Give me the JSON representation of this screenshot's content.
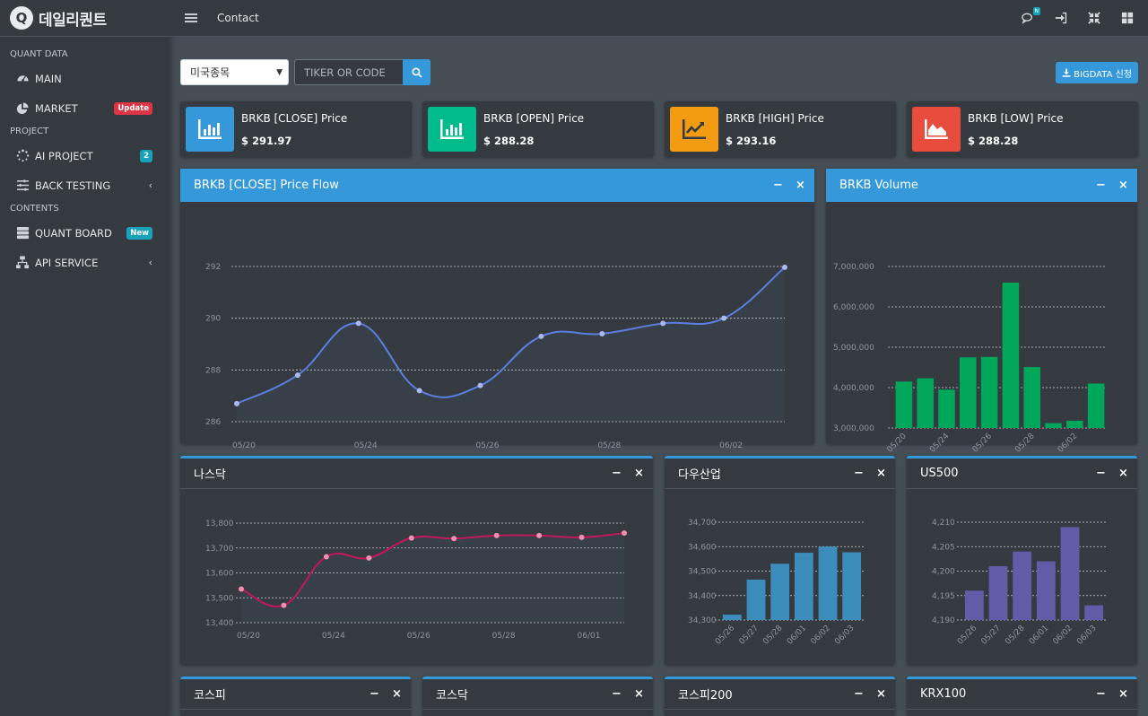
{
  "brand": {
    "logo_letter": "Q",
    "name": "데일리퀀트"
  },
  "sidebar": {
    "sections": [
      {
        "header": "QUANT DATA",
        "items": [
          {
            "label": "MAIN",
            "icon": "dashboard-gauge-icon",
            "badge": "",
            "chevron": ""
          },
          {
            "label": "MARKET",
            "icon": "pie-chart-icon",
            "badge": "Update",
            "badge_color": "#dc3545",
            "chevron": ""
          }
        ]
      },
      {
        "header": "PROJECT",
        "items": [
          {
            "label": "AI PROJECT",
            "icon": "spinner-icon",
            "badge": "2",
            "badge_color": "#17a2b8",
            "chevron": ""
          },
          {
            "label": "BACK TESTING",
            "icon": "sliders-icon",
            "badge": "",
            "chevron": "‹"
          }
        ]
      },
      {
        "header": "CONTENTS",
        "items": [
          {
            "label": "QUANT BOARD",
            "icon": "server-icon",
            "badge": "New",
            "badge_color": "#17a2b8",
            "chevron": ""
          },
          {
            "label": "API SERVICE",
            "icon": "sitemap-icon",
            "badge": "",
            "chevron": "‹"
          }
        ]
      }
    ]
  },
  "topbar": {
    "title": "Contact",
    "notification_badge": "N"
  },
  "toolbar": {
    "select_value": "미국종목",
    "search_placeholder": "TIKER OR CODE",
    "bigdata_label": "BIGDATA 신청"
  },
  "info_boxes": [
    {
      "label": "BRKB [CLOSE] Price",
      "value": "$ 291.97",
      "color": "#3498db",
      "icon": "bar-chart-icon"
    },
    {
      "label": "BRKB [OPEN] Price",
      "value": "$ 288.28",
      "color": "#00bc8c",
      "icon": "bar-chart-icon"
    },
    {
      "label": "BRKB [HIGH] Price",
      "value": "$ 293.16",
      "color": "#f39c12",
      "icon": "line-chart-icon"
    },
    {
      "label": "BRKB [LOW] Price",
      "value": "$ 288.28",
      "color": "#e74c3c",
      "icon": "area-chart-icon"
    }
  ],
  "cards": {
    "close_flow": "BRKB [CLOSE] Price Flow",
    "volume": "BRKB Volume",
    "nasdaq": "나스닥",
    "dow": "다우산업",
    "us500": "US500",
    "kospi": "코스피",
    "kosdaq": "코스닥",
    "kospi200": "코스피200",
    "krx100": "KRX100"
  },
  "tools": {
    "minimize": "−",
    "close": "×"
  },
  "chart_data": [
    {
      "id": "close_flow",
      "type": "line",
      "color": "#5b7fe0",
      "x_tick_labels": [
        "05/20",
        "05/24",
        "05/26",
        "05/28",
        "06/02"
      ],
      "y_ticks": [
        286,
        288,
        290,
        292
      ],
      "ylim": [
        286,
        292
      ],
      "values": [
        286.7,
        287.8,
        289.8,
        287.2,
        287.4,
        289.3,
        289.4,
        289.8,
        290.0,
        291.97
      ],
      "grid": true
    },
    {
      "id": "volume",
      "type": "bar",
      "color": "#00a65a",
      "categories": [
        "05/20",
        "",
        "05/24",
        "",
        "05/26",
        "",
        "05/28",
        "",
        "06/02",
        ""
      ],
      "y_ticks": [
        3000000,
        4000000,
        5000000,
        6000000,
        7000000
      ],
      "y_tick_labels": [
        "3,000,000",
        "4,000,000",
        "5,000,000",
        "6,000,000",
        "7,000,000"
      ],
      "ylim": [
        3000000,
        7000000
      ],
      "values": [
        4150000,
        4230000,
        3950000,
        4750000,
        4760000,
        6600000,
        4510000,
        3120000,
        3180000,
        4100000
      ],
      "grid": true
    },
    {
      "id": "nasdaq",
      "type": "line",
      "color": "#c2185b",
      "point_color": "#f48fb1",
      "x_tick_labels": [
        "05/20",
        "05/24",
        "05/26",
        "05/28",
        "06/01"
      ],
      "y_ticks": [
        13400,
        13500,
        13600,
        13700,
        13800
      ],
      "y_tick_labels": [
        "13,400",
        "13,500",
        "13,600",
        "13,700",
        "13,800"
      ],
      "ylim": [
        13400,
        13800
      ],
      "values": [
        13535,
        13470,
        13665,
        13660,
        13740,
        13738,
        13750,
        13750,
        13743,
        13760
      ],
      "grid": true
    },
    {
      "id": "dow",
      "type": "bar",
      "color": "#3c8dbc",
      "categories": [
        "05/26",
        "05/27",
        "05/28",
        "06/01",
        "06/02",
        "06/03"
      ],
      "y_ticks": [
        34300,
        34400,
        34500,
        34600,
        34700
      ],
      "y_tick_labels": [
        "34,300",
        "34,400",
        "34,500",
        "34,600",
        "34,700"
      ],
      "ylim": [
        34300,
        34700
      ],
      "values": [
        34322,
        34465,
        34530,
        34575,
        34600,
        34577
      ],
      "grid": true
    },
    {
      "id": "us500",
      "type": "bar",
      "color": "#605ca8",
      "categories": [
        "05/26",
        "05/27",
        "05/28",
        "06/01",
        "06/02",
        "06/03"
      ],
      "y_ticks": [
        4190,
        4195,
        4200,
        4205,
        4210
      ],
      "y_tick_labels": [
        "4,190",
        "4,195",
        "4,200",
        "4,205",
        "4,210"
      ],
      "ylim": [
        4190,
        4210
      ],
      "values": [
        4196,
        4201,
        4204,
        4202,
        4209,
        4193
      ],
      "grid": true
    }
  ]
}
